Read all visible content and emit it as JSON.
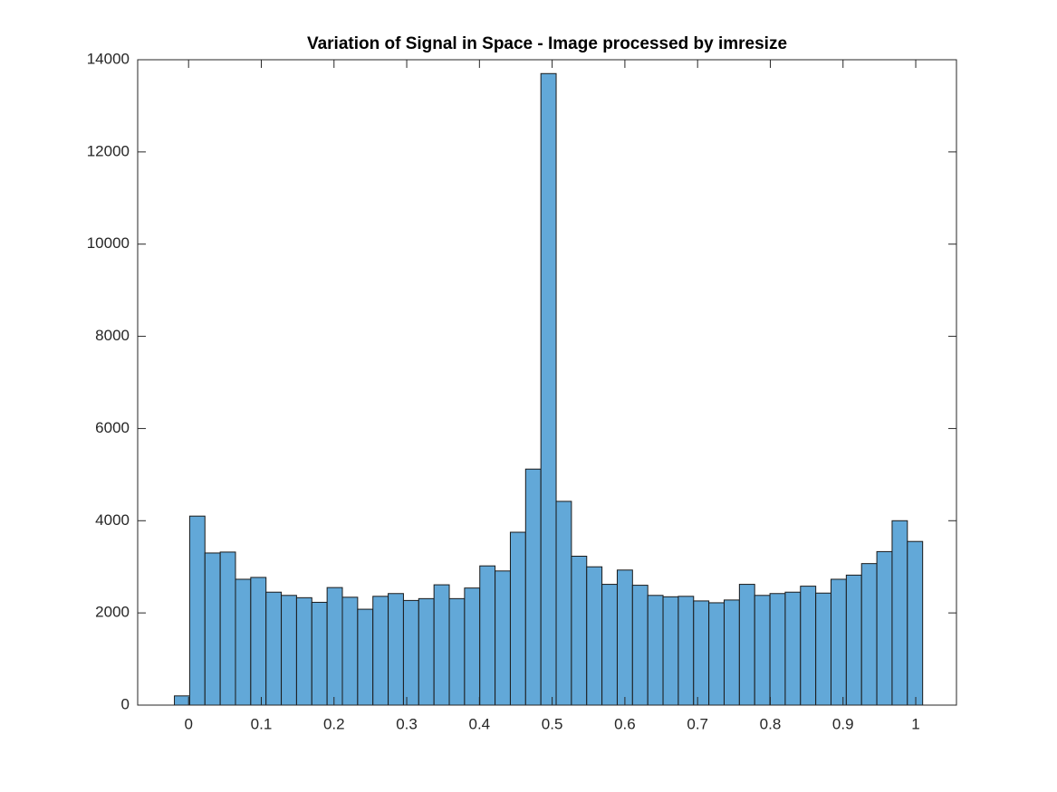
{
  "chart_data": {
    "type": "histogram",
    "title": "Variation of Signal in Space - Image processed by imresize",
    "bins": [
      -0.0195,
      0.0015,
      0.0225,
      0.0435,
      0.0645,
      0.0855,
      0.1065,
      0.1275,
      0.1485,
      0.1695,
      0.1905,
      0.2115,
      0.2325,
      0.2535,
      0.2745,
      0.2955,
      0.3165,
      0.3375,
      0.3585,
      0.3795,
      0.4005,
      0.4215,
      0.4425,
      0.4635,
      0.4845,
      0.5055,
      0.5265,
      0.5475,
      0.5685,
      0.5895,
      0.6105,
      0.6315,
      0.6525,
      0.6735,
      0.6945,
      0.7155,
      0.7365,
      0.7575,
      0.7785,
      0.7995,
      0.8205,
      0.8415,
      0.8625,
      0.8835,
      0.9045,
      0.9255,
      0.9465,
      0.9675,
      0.9885,
      1.0095
    ],
    "counts": [
      200,
      4100,
      3300,
      3320,
      2730,
      2770,
      2450,
      2380,
      2330,
      2230,
      2550,
      2340,
      2080,
      2360,
      2420,
      2270,
      2310,
      2610,
      2310,
      2540,
      3020,
      2910,
      3750,
      5120,
      13700,
      4420,
      3230,
      3000,
      2620,
      2930,
      2600,
      2380,
      2350,
      2360,
      2260,
      2220,
      2280,
      2620,
      2380,
      2420,
      2450,
      2580,
      2430,
      2730,
      2820,
      3070,
      3330,
      4000,
      3550
    ],
    "color": "#62a8d8",
    "xlim": [
      -0.07,
      1.056
    ],
    "xticks": [
      0,
      0.1,
      0.2,
      0.3,
      0.4,
      0.5,
      0.6,
      0.7,
      0.8,
      0.9,
      1
    ],
    "ylim": [
      0,
      14000
    ],
    "yticks": [
      0,
      2000,
      4000,
      6000,
      8000,
      10000,
      12000,
      14000
    ]
  }
}
